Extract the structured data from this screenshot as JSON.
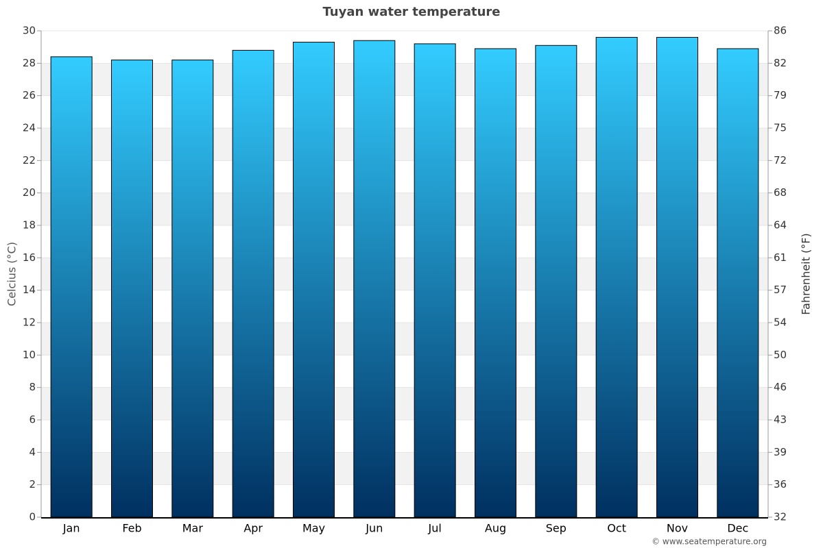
{
  "chart_data": {
    "type": "bar",
    "title": "Tuyan water temperature",
    "categories": [
      "Jan",
      "Feb",
      "Mar",
      "Apr",
      "May",
      "Jun",
      "Jul",
      "Aug",
      "Sep",
      "Oct",
      "Nov",
      "Dec"
    ],
    "values": [
      28.4,
      28.2,
      28.2,
      28.8,
      29.3,
      29.4,
      29.2,
      28.9,
      29.1,
      29.6,
      29.6,
      28.9
    ],
    "gradient": [
      "#33ccff",
      "#003060"
    ],
    "ylabel": "Celcius (°C)",
    "y2label": "Fahrenheit (°F)",
    "ylim": [
      0,
      30
    ],
    "yticks": [
      0,
      2,
      4,
      6,
      8,
      10,
      12,
      14,
      16,
      18,
      20,
      22,
      24,
      26,
      28,
      30
    ],
    "y2lim": [
      32,
      86
    ],
    "y2ticks": [
      32,
      {
        "value": 35.6,
        "label": "36"
      },
      {
        "value": 39.2,
        "label": "39"
      },
      {
        "value": 42.8,
        "label": "43"
      },
      {
        "value": 46.4,
        "label": "46"
      },
      50,
      {
        "value": 53.6,
        "label": "54"
      },
      {
        "value": 57.2,
        "label": "57"
      },
      {
        "value": 60.8,
        "label": "61"
      },
      {
        "value": 64.4,
        "label": "64"
      },
      68,
      {
        "value": 71.6,
        "label": "72"
      },
      {
        "value": 75.2,
        "label": "75"
      },
      {
        "value": 78.8,
        "label": "79"
      },
      {
        "value": 82.4,
        "label": "82"
      },
      86
    ],
    "grid": true,
    "credit": "© www.seatemperature.org"
  }
}
